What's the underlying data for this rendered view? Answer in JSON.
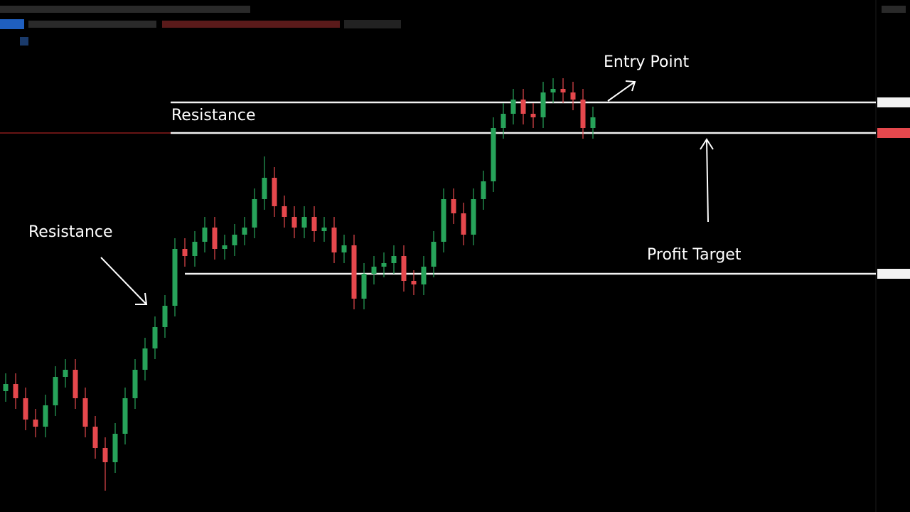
{
  "chart_data": {
    "type": "candlestick",
    "open": [
      17,
      18,
      16,
      13,
      12,
      15,
      19,
      20,
      16,
      12,
      9,
      7,
      11,
      16,
      20,
      23,
      26,
      29,
      37,
      36,
      38,
      40,
      37,
      37.5,
      39,
      40,
      44,
      47,
      43,
      41.5,
      40,
      41.5,
      39.5,
      40,
      36.5,
      37.5,
      30,
      33.5,
      34.5,
      35,
      36,
      32.5,
      32,
      34.5,
      38,
      44,
      42,
      39,
      44,
      46.5,
      54,
      56,
      58,
      56,
      55.5,
      59,
      59.5,
      59,
      58,
      54
    ],
    "high": [
      19.5,
      19.5,
      17.5,
      14.5,
      16.5,
      20.5,
      21.5,
      21.5,
      17.5,
      13.5,
      10.5,
      12.5,
      17.5,
      21.5,
      24.5,
      27.5,
      30.5,
      38.5,
      38.5,
      39.5,
      41.5,
      41.5,
      39,
      40.5,
      41.5,
      45.5,
      50,
      48.5,
      44.5,
      43,
      43,
      43,
      41.5,
      41.5,
      39,
      39,
      35,
      36,
      36.5,
      37.5,
      37.5,
      34,
      36,
      39.5,
      45.5,
      45.5,
      43.5,
      45.5,
      48,
      55.5,
      57.5,
      59.5,
      59.5,
      57.5,
      60.5,
      61,
      61,
      60.5,
      59.5,
      57
    ],
    "low": [
      15.5,
      14.5,
      11.5,
      10.5,
      10.5,
      13.5,
      17.5,
      14.5,
      10.5,
      7.5,
      3,
      5.5,
      9.5,
      14.5,
      18.5,
      21.5,
      24.5,
      27.5,
      34.5,
      34.5,
      36.5,
      35.5,
      35.5,
      36,
      37.5,
      38.5,
      42.5,
      41.5,
      40,
      38.5,
      38.5,
      38,
      38,
      35,
      35,
      28.5,
      28.5,
      32,
      33,
      33.5,
      31,
      30.5,
      30.5,
      33,
      36.5,
      40.5,
      37.5,
      37.5,
      42.5,
      45,
      52.5,
      54.5,
      54.5,
      54,
      54,
      57.5,
      57.5,
      56.5,
      52.5,
      52.5
    ],
    "close": [
      18,
      16,
      13,
      12,
      15,
      19,
      20,
      16,
      12,
      9,
      7,
      11,
      16,
      20,
      23,
      26,
      29,
      37,
      36,
      38,
      40,
      37,
      37.5,
      39,
      40,
      44,
      47,
      43,
      41.5,
      40,
      41.5,
      39.5,
      40,
      36.5,
      37.5,
      30,
      33.5,
      34.5,
      35,
      36,
      32.5,
      32,
      34.5,
      38,
      44,
      42,
      39,
      44,
      46.5,
      54,
      56,
      58,
      56,
      55.5,
      59,
      59.5,
      59,
      58,
      54,
      55.5
    ],
    "ylim": [
      0,
      72
    ],
    "up_color": "#27a35a",
    "down_color": "#e5484d",
    "levels": [
      57.6,
      53.3,
      33.5
    ],
    "annotations": {
      "entry": "Entry Point",
      "resistance_top": "Resistance",
      "resistance_left": "Resistance",
      "target": "Profit Target"
    }
  }
}
